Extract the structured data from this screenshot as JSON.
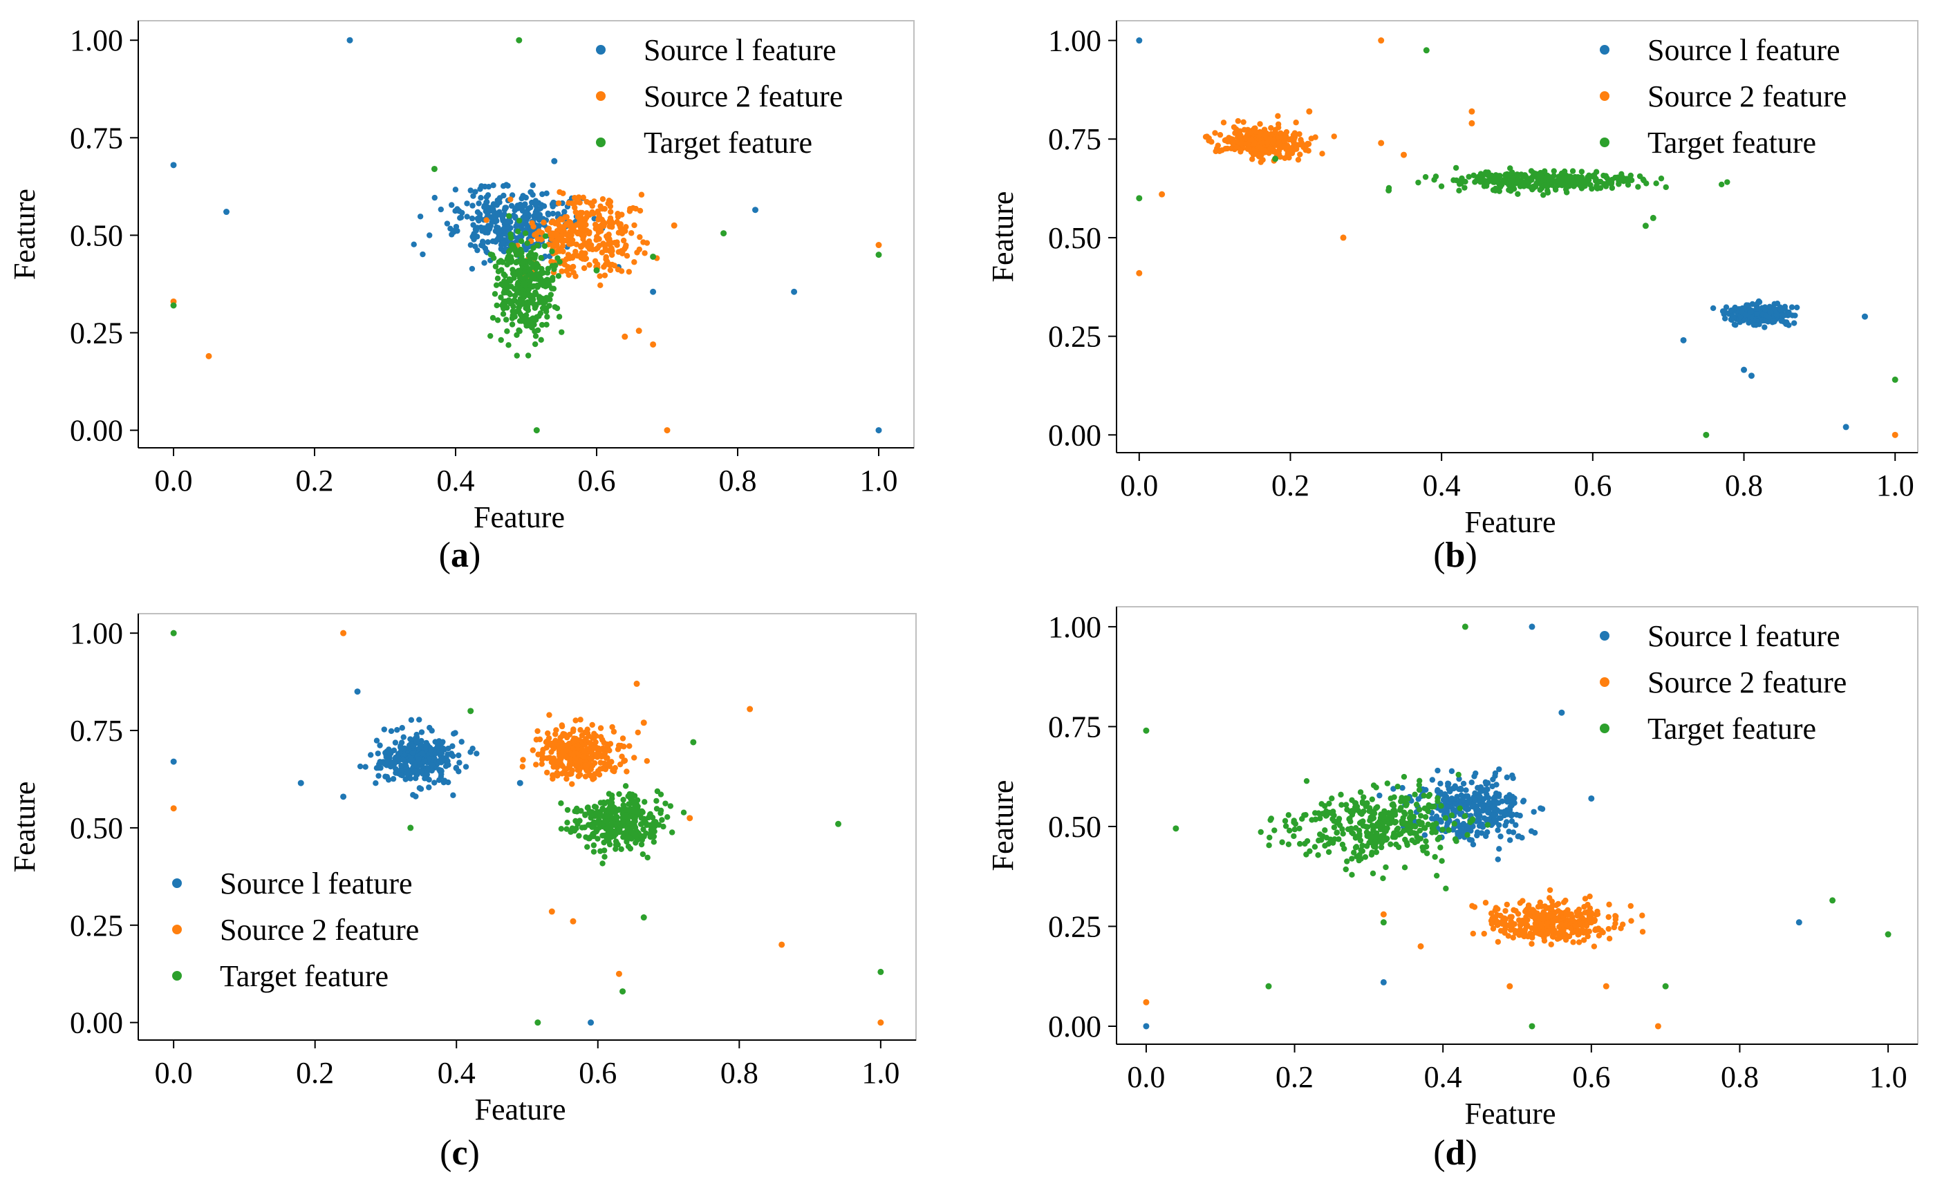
{
  "figure": {
    "type": "scatter_grid",
    "rows": 2,
    "cols": 2
  },
  "colors": {
    "source1": "#1f77b4",
    "source2": "#ff7f0e",
    "target": "#2ca02c",
    "axis": "#000000",
    "frame": "#bfbfbf"
  },
  "legend_labels": [
    "Source l feature",
    "Source 2 feature",
    "Target feature"
  ],
  "panel_labels": {
    "a": {
      "open": "(",
      "letter": "a",
      "close": ")"
    },
    "b": {
      "open": "(",
      "letter": "b",
      "close": ")"
    },
    "c": {
      "open": "(",
      "letter": "c",
      "close": ")"
    },
    "d": {
      "open": "(",
      "letter": "d",
      "close": ")"
    }
  },
  "chart_data": [
    {
      "type": "scatter",
      "panel": "a",
      "title": "",
      "xlabel": "Feature",
      "ylabel": "Feature",
      "xlim": [
        -0.05,
        1.05
      ],
      "ylim": [
        -0.045,
        1.05
      ],
      "xticks": [
        0.0,
        0.2,
        0.4,
        0.6,
        0.8,
        1.0
      ],
      "xtick_labels": [
        "0.0",
        "0.2",
        "0.4",
        "0.6",
        "0.8",
        "1.0"
      ],
      "yticks": [
        0.0,
        0.25,
        0.5,
        0.75,
        1.0
      ],
      "ytick_labels": [
        "0.00",
        "0.25",
        "0.50",
        "0.75",
        "1.00"
      ],
      "legend": "top-right",
      "grid": false,
      "series": [
        {
          "name": "Source l feature",
          "color": "#1f77b4",
          "cluster": {
            "cx": 0.48,
            "cy": 0.53,
            "sx": 0.045,
            "sy": 0.045,
            "n": 340
          },
          "outliers": [
            [
              0.25,
              1.0
            ],
            [
              0.0,
              0.68
            ],
            [
              0.075,
              0.56
            ],
            [
              0.54,
              0.69
            ],
            [
              0.825,
              0.565
            ],
            [
              0.88,
              0.355
            ],
            [
              0.68,
              0.355
            ],
            [
              1.0,
              0.0
            ]
          ]
        },
        {
          "name": "Source 2 feature",
          "color": "#ff7f0e",
          "cluster": {
            "cx": 0.58,
            "cy": 0.5,
            "sx": 0.04,
            "sy": 0.05,
            "n": 320
          },
          "outliers": [
            [
              0.0,
              0.33
            ],
            [
              0.05,
              0.19
            ],
            [
              0.71,
              0.525
            ],
            [
              1.0,
              0.475
            ],
            [
              0.66,
              0.255
            ],
            [
              0.68,
              0.22
            ],
            [
              0.64,
              0.24
            ],
            [
              0.7,
              0.0
            ]
          ]
        },
        {
          "name": "Target feature",
          "color": "#2ca02c",
          "cluster": {
            "cx": 0.5,
            "cy": 0.37,
            "sx": 0.022,
            "sy": 0.065,
            "n": 320
          },
          "outliers": [
            [
              0.49,
              1.0
            ],
            [
              0.37,
              0.67
            ],
            [
              0.0,
              0.32
            ],
            [
              0.78,
              0.505
            ],
            [
              0.68,
              0.445
            ],
            [
              1.0,
              0.45
            ],
            [
              0.6,
              0.41
            ],
            [
              0.515,
              0.0
            ]
          ]
        }
      ]
    },
    {
      "type": "scatter",
      "panel": "b",
      "title": "",
      "xlabel": "Feature",
      "ylabel": "Feature",
      "xlim": [
        -0.03,
        1.03
      ],
      "ylim": [
        -0.045,
        1.05
      ],
      "xticks": [
        0.0,
        0.2,
        0.4,
        0.6,
        0.8,
        1.0
      ],
      "xtick_labels": [
        "0.0",
        "0.2",
        "0.4",
        "0.6",
        "0.8",
        "1.0"
      ],
      "yticks": [
        0.0,
        0.25,
        0.5,
        0.75,
        1.0
      ],
      "ytick_labels": [
        "0.00",
        "0.25",
        "0.50",
        "0.75",
        "1.00"
      ],
      "legend": "top-right",
      "grid": false,
      "series": [
        {
          "name": "Source l feature",
          "color": "#1f77b4",
          "cluster": {
            "cx": 0.82,
            "cy": 0.305,
            "sx": 0.02,
            "sy": 0.012,
            "n": 300
          },
          "outliers": [
            [
              0.0,
              1.0
            ],
            [
              0.72,
              0.24
            ],
            [
              0.8,
              0.165
            ],
            [
              0.81,
              0.15
            ],
            [
              0.96,
              0.3
            ],
            [
              0.935,
              0.02
            ]
          ]
        },
        {
          "name": "Source 2 feature",
          "color": "#ff7f0e",
          "cluster": {
            "cx": 0.165,
            "cy": 0.745,
            "sx": 0.028,
            "sy": 0.018,
            "n": 340
          },
          "outliers": [
            [
              0.32,
              1.0
            ],
            [
              0.0,
              0.41
            ],
            [
              0.03,
              0.61
            ],
            [
              0.27,
              0.5
            ],
            [
              0.44,
              0.82
            ],
            [
              0.44,
              0.79
            ],
            [
              0.32,
              0.74
            ],
            [
              0.35,
              0.71
            ],
            [
              0.225,
              0.82
            ],
            [
              1.0,
              0.0
            ]
          ]
        },
        {
          "name": "Target feature",
          "color": "#2ca02c",
          "cluster": {
            "cx": 0.54,
            "cy": 0.645,
            "sx": 0.06,
            "sy": 0.013,
            "n": 320
          },
          "outliers": [
            [
              0.38,
              0.975
            ],
            [
              0.0,
              0.6
            ],
            [
              0.33,
              0.62
            ],
            [
              0.18,
              0.7
            ],
            [
              0.67,
              0.53
            ],
            [
              0.68,
              0.55
            ],
            [
              0.75,
              0.0
            ],
            [
              1.0,
              0.14
            ]
          ]
        }
      ]
    },
    {
      "type": "scatter",
      "panel": "c",
      "title": "",
      "xlabel": "Feature",
      "ylabel": "Feature",
      "xlim": [
        -0.05,
        1.05
      ],
      "ylim": [
        -0.045,
        1.05
      ],
      "xticks": [
        0.0,
        0.2,
        0.4,
        0.6,
        0.8,
        1.0
      ],
      "xtick_labels": [
        "0.0",
        "0.2",
        "0.4",
        "0.6",
        "0.8",
        "1.0"
      ],
      "yticks": [
        0.0,
        0.25,
        0.5,
        0.75,
        1.0
      ],
      "ytick_labels": [
        "0.00",
        "0.25",
        "0.50",
        "0.75",
        "1.00"
      ],
      "legend": "bottom-left",
      "grid": false,
      "series": [
        {
          "name": "Source l feature",
          "color": "#1f77b4",
          "cluster": {
            "cx": 0.345,
            "cy": 0.675,
            "sx": 0.03,
            "sy": 0.032,
            "n": 330
          },
          "outliers": [
            [
              0.0,
              0.67
            ],
            [
              0.26,
              0.85
            ],
            [
              0.18,
              0.615
            ],
            [
              0.24,
              0.58
            ],
            [
              0.49,
              0.615
            ],
            [
              0.59,
              0.0
            ]
          ]
        },
        {
          "name": "Source 2 feature",
          "color": "#ff7f0e",
          "cluster": {
            "cx": 0.57,
            "cy": 0.69,
            "sx": 0.03,
            "sy": 0.032,
            "n": 330
          },
          "outliers": [
            [
              0.24,
              1.0
            ],
            [
              0.0,
              0.55
            ],
            [
              0.655,
              0.87
            ],
            [
              0.665,
              0.77
            ],
            [
              0.815,
              0.805
            ],
            [
              0.73,
              0.525
            ],
            [
              0.535,
              0.285
            ],
            [
              0.565,
              0.26
            ],
            [
              0.63,
              0.125
            ],
            [
              0.86,
              0.2
            ],
            [
              1.0,
              0.0
            ]
          ]
        },
        {
          "name": "Target feature",
          "color": "#2ca02c",
          "cluster": {
            "cx": 0.63,
            "cy": 0.515,
            "sx": 0.03,
            "sy": 0.032,
            "n": 320
          },
          "outliers": [
            [
              0.0,
              1.0
            ],
            [
              0.42,
              0.8
            ],
            [
              0.335,
              0.5
            ],
            [
              0.735,
              0.72
            ],
            [
              0.94,
              0.51
            ],
            [
              0.665,
              0.27
            ],
            [
              0.635,
              0.08
            ],
            [
              1.0,
              0.13
            ],
            [
              0.515,
              0.0
            ]
          ]
        }
      ]
    },
    {
      "type": "scatter",
      "panel": "d",
      "title": "",
      "xlabel": "Feature",
      "ylabel": "Feature",
      "xlim": [
        -0.04,
        1.04
      ],
      "ylim": [
        -0.045,
        1.05
      ],
      "xticks": [
        0.0,
        0.2,
        0.4,
        0.6,
        0.8,
        1.0
      ],
      "xtick_labels": [
        "0.0",
        "0.2",
        "0.4",
        "0.6",
        "0.8",
        "1.0"
      ],
      "yticks": [
        0.0,
        0.25,
        0.5,
        0.75,
        1.0
      ],
      "ytick_labels": [
        "0.00",
        "0.25",
        "0.50",
        "0.75",
        "1.00"
      ],
      "legend": "top-right",
      "grid": false,
      "series": [
        {
          "name": "Source l feature",
          "color": "#1f77b4",
          "cluster": {
            "cx": 0.44,
            "cy": 0.545,
            "sx": 0.04,
            "sy": 0.035,
            "n": 330
          },
          "outliers": [
            [
              0.52,
              1.0
            ],
            [
              0.56,
              0.785
            ],
            [
              0.6,
              0.57
            ],
            [
              0.32,
              0.11
            ],
            [
              0.88,
              0.26
            ],
            [
              0.0,
              0.0
            ]
          ]
        },
        {
          "name": "Source 2 feature",
          "color": "#ff7f0e",
          "cluster": {
            "cx": 0.55,
            "cy": 0.26,
            "sx": 0.045,
            "sy": 0.025,
            "n": 340
          },
          "outliers": [
            [
              0.0,
              0.06
            ],
            [
              0.32,
              0.28
            ],
            [
              0.37,
              0.2
            ],
            [
              0.49,
              0.1
            ],
            [
              0.62,
              0.1
            ],
            [
              0.69,
              0.0
            ]
          ]
        },
        {
          "name": "Target feature",
          "color": "#2ca02c",
          "cluster": {
            "cx": 0.31,
            "cy": 0.5,
            "sx": 0.055,
            "sy": 0.045,
            "n": 360
          },
          "outliers": [
            [
              0.43,
              1.0
            ],
            [
              0.0,
              0.74
            ],
            [
              0.04,
              0.495
            ],
            [
              0.165,
              0.1
            ],
            [
              0.32,
              0.26
            ],
            [
              0.52,
              0.0
            ],
            [
              0.7,
              0.1
            ],
            [
              0.925,
              0.315
            ],
            [
              1.0,
              0.23
            ]
          ]
        }
      ]
    }
  ]
}
